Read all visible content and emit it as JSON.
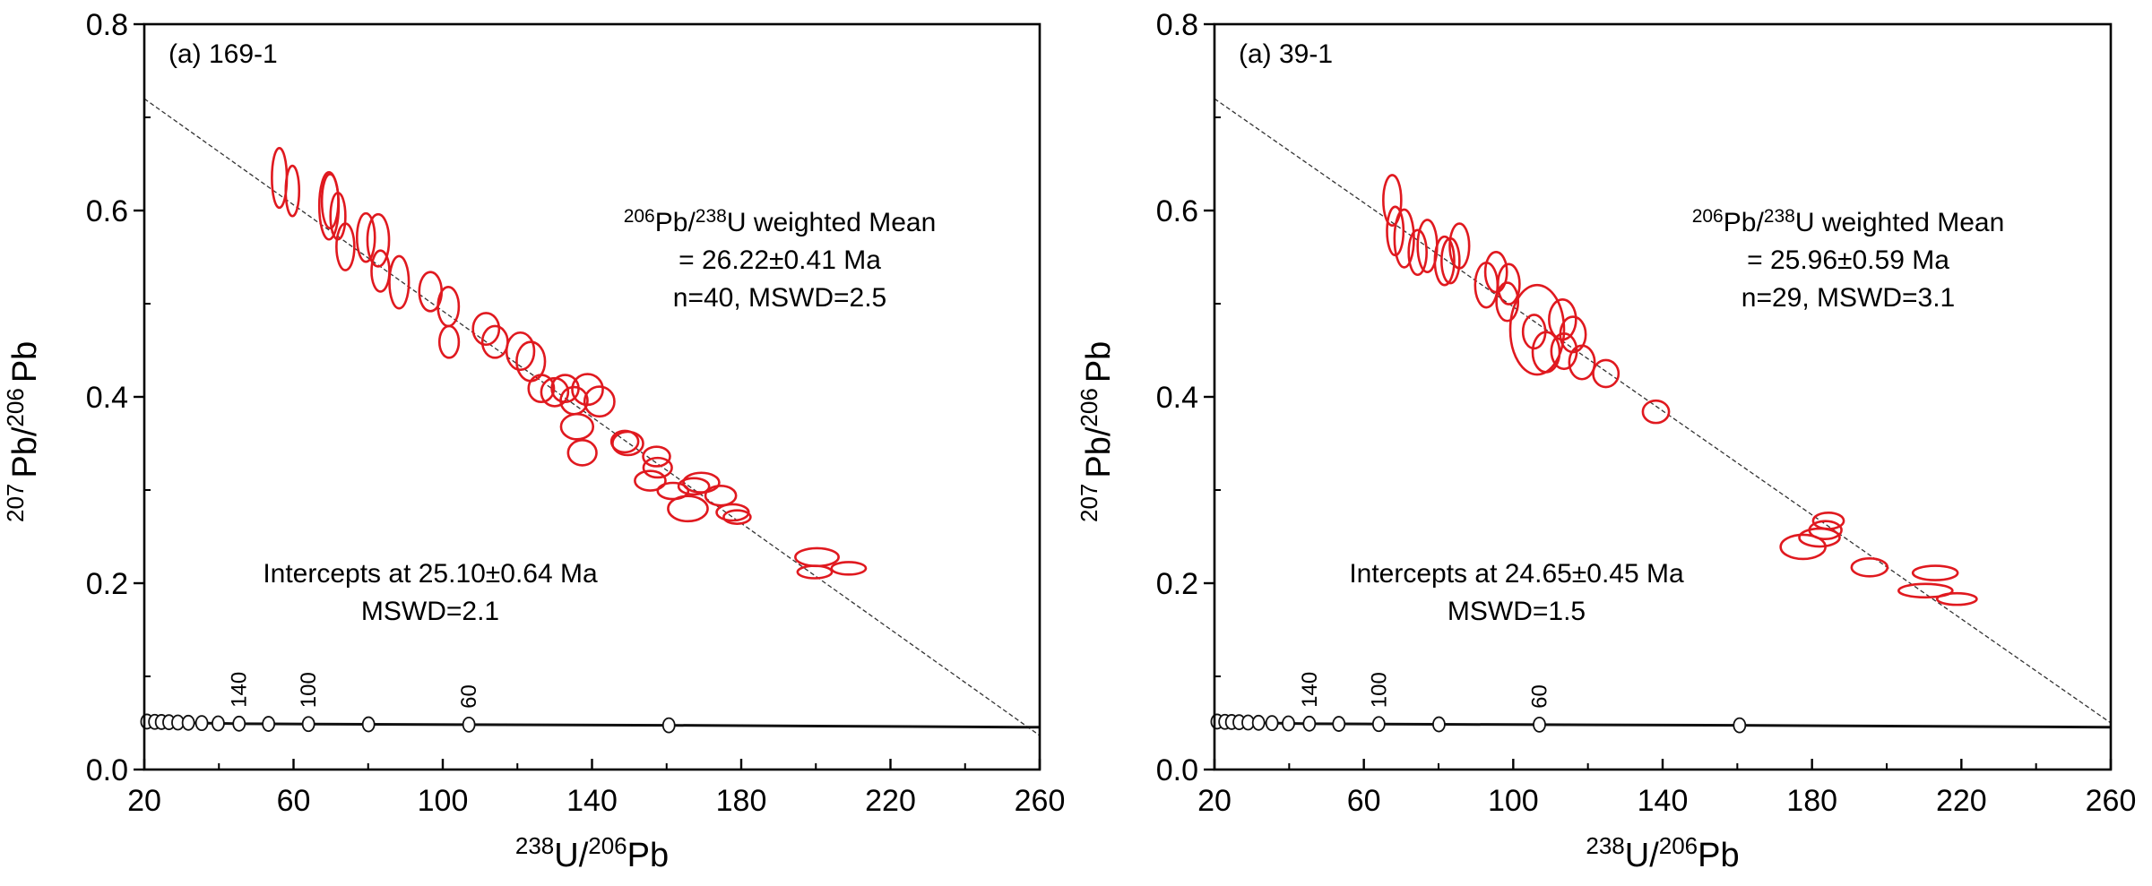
{
  "chart_data": [
    {
      "type": "scatter",
      "subtype": "tera-wasserburg-concordia",
      "panel_label": "(a) 169-1",
      "xlabel": {
        "sup1": "238",
        "base1": "U/",
        "sup2": "206",
        "base2": "Pb"
      },
      "ylabel": {
        "sup1": "207",
        "base1": "Pb/",
        "sup2": "206",
        "base2": "Pb"
      },
      "xlim": [
        20,
        260
      ],
      "ylim": [
        0.0,
        0.8
      ],
      "x_ticks": [
        20,
        60,
        100,
        140,
        180,
        220,
        260
      ],
      "x_tick_labels": [
        "20",
        "60",
        "100",
        "140",
        "180",
        "220",
        "260"
      ],
      "x_minor_ticks": [
        40,
        80,
        120,
        160,
        200,
        240
      ],
      "y_ticks": [
        0.0,
        0.2,
        0.4,
        0.6,
        0.8
      ],
      "y_tick_labels": [
        "0.0",
        "0.2",
        "0.4",
        "0.6",
        "0.8"
      ],
      "y_minor_ticks": [
        0.1,
        0.3,
        0.5,
        0.7
      ],
      "grid": false,
      "annotation_mean": {
        "line1_sup1": "206",
        "line1_a": "Pb/",
        "line1_sup2": "238",
        "line1_b": "U weighted Mean",
        "line2": "= 26.22±0.41 Ma",
        "line3": "n=40, MSWD=2.5"
      },
      "annotation_intercept": {
        "line1": "Intercepts at 25.10±0.64 Ma",
        "line2": "MSWD=2.1"
      },
      "discordia": {
        "x": [
          20,
          260
        ],
        "y": [
          0.72,
          0.0365
        ]
      },
      "concordia": {
        "x": [
          20.7,
          22.8,
          24.6,
          26.6,
          29.0,
          31.8,
          35.4,
          39.8,
          45.4,
          53.3,
          64.0,
          80.1,
          107.0,
          160.6,
          260
        ],
        "y": [
          0.0515,
          0.0512,
          0.051,
          0.0508,
          0.0505,
          0.0502,
          0.0499,
          0.0495,
          0.0492,
          0.049,
          0.0488,
          0.0485,
          0.0482,
          0.0475,
          0.0454
        ],
        "markers": [
          20.7,
          22.8,
          24.6,
          26.6,
          29.0,
          31.8,
          35.4,
          39.8,
          45.4,
          53.3,
          64.0,
          80.1,
          107.0,
          160.6
        ],
        "age_labels": [
          {
            "x": 45.4,
            "text": "140"
          },
          {
            "x": 64.0,
            "text": "100"
          },
          {
            "x": 107.0,
            "text": "60"
          }
        ]
      },
      "ellipse_color": "#e0191f",
      "ellipses": [
        {
          "x": 56.2,
          "y": 0.635,
          "sx": 2.0,
          "sy": 0.032
        },
        {
          "x": 59.7,
          "y": 0.621,
          "sx": 1.8,
          "sy": 0.027
        },
        {
          "x": 69.5,
          "y": 0.605,
          "sx": 2.6,
          "sy": 0.036
        },
        {
          "x": 69.8,
          "y": 0.61,
          "sx": 2.2,
          "sy": 0.029
        },
        {
          "x": 71.9,
          "y": 0.594,
          "sx": 2.0,
          "sy": 0.025
        },
        {
          "x": 73.9,
          "y": 0.561,
          "sx": 2.4,
          "sy": 0.025
        },
        {
          "x": 79.4,
          "y": 0.571,
          "sx": 2.4,
          "sy": 0.026
        },
        {
          "x": 82.7,
          "y": 0.568,
          "sx": 2.9,
          "sy": 0.028
        },
        {
          "x": 83.3,
          "y": 0.535,
          "sx": 2.4,
          "sy": 0.022
        },
        {
          "x": 88.3,
          "y": 0.523,
          "sx": 2.6,
          "sy": 0.028
        },
        {
          "x": 96.7,
          "y": 0.513,
          "sx": 3.0,
          "sy": 0.021
        },
        {
          "x": 101.5,
          "y": 0.497,
          "sx": 2.8,
          "sy": 0.021
        },
        {
          "x": 101.7,
          "y": 0.459,
          "sx": 2.6,
          "sy": 0.017
        },
        {
          "x": 111.6,
          "y": 0.473,
          "sx": 3.5,
          "sy": 0.017
        },
        {
          "x": 114.0,
          "y": 0.459,
          "sx": 3.4,
          "sy": 0.017
        },
        {
          "x": 120.8,
          "y": 0.449,
          "sx": 3.7,
          "sy": 0.02
        },
        {
          "x": 123.6,
          "y": 0.438,
          "sx": 3.8,
          "sy": 0.021
        },
        {
          "x": 126.4,
          "y": 0.409,
          "sx": 3.4,
          "sy": 0.0145
        },
        {
          "x": 130.0,
          "y": 0.405,
          "sx": 3.6,
          "sy": 0.015
        },
        {
          "x": 132.8,
          "y": 0.409,
          "sx": 3.6,
          "sy": 0.0145
        },
        {
          "x": 135.2,
          "y": 0.396,
          "sx": 3.6,
          "sy": 0.0145
        },
        {
          "x": 138.8,
          "y": 0.408,
          "sx": 4.1,
          "sy": 0.0165
        },
        {
          "x": 142.0,
          "y": 0.395,
          "sx": 4.0,
          "sy": 0.016
        },
        {
          "x": 136.0,
          "y": 0.368,
          "sx": 4.3,
          "sy": 0.0135
        },
        {
          "x": 137.4,
          "y": 0.34,
          "sx": 3.8,
          "sy": 0.0135
        },
        {
          "x": 148.8,
          "y": 0.352,
          "sx": 3.6,
          "sy": 0.0115
        },
        {
          "x": 149.6,
          "y": 0.35,
          "sx": 4.1,
          "sy": 0.0125
        },
        {
          "x": 157.3,
          "y": 0.336,
          "sx": 3.6,
          "sy": 0.0105
        },
        {
          "x": 157.6,
          "y": 0.324,
          "sx": 3.8,
          "sy": 0.0105
        },
        {
          "x": 155.6,
          "y": 0.31,
          "sx": 4.1,
          "sy": 0.0105
        },
        {
          "x": 161.7,
          "y": 0.299,
          "sx": 4.1,
          "sy": 0.0087
        },
        {
          "x": 165.7,
          "y": 0.28,
          "sx": 5.3,
          "sy": 0.0135
        },
        {
          "x": 167.3,
          "y": 0.304,
          "sx": 4.1,
          "sy": 0.0087
        },
        {
          "x": 169.3,
          "y": 0.308,
          "sx": 4.8,
          "sy": 0.0105
        },
        {
          "x": 174.5,
          "y": 0.294,
          "sx": 4.1,
          "sy": 0.0105
        },
        {
          "x": 177.7,
          "y": 0.276,
          "sx": 4.3,
          "sy": 0.0087
        },
        {
          "x": 178.9,
          "y": 0.271,
          "sx": 3.6,
          "sy": 0.0072
        },
        {
          "x": 200.3,
          "y": 0.228,
          "sx": 5.8,
          "sy": 0.0096
        },
        {
          "x": 199.7,
          "y": 0.212,
          "sx": 4.6,
          "sy": 0.0067
        },
        {
          "x": 208.8,
          "y": 0.216,
          "sx": 4.6,
          "sy": 0.0067
        }
      ]
    },
    {
      "type": "scatter",
      "subtype": "tera-wasserburg-concordia",
      "panel_label": "(a) 39-1",
      "xlabel": {
        "sup1": "238",
        "base1": "U/",
        "sup2": "206",
        "base2": "Pb"
      },
      "ylabel": {
        "sup1": "207",
        "base1": "Pb/",
        "sup2": "206",
        "base2": "Pb"
      },
      "xlim": [
        20,
        260
      ],
      "ylim": [
        0.0,
        0.8
      ],
      "x_ticks": [
        20,
        60,
        100,
        140,
        180,
        220,
        260
      ],
      "x_tick_labels": [
        "20",
        "60",
        "100",
        "140",
        "180",
        "220",
        "260"
      ],
      "x_minor_ticks": [
        40,
        80,
        120,
        160,
        200,
        240
      ],
      "y_ticks": [
        0.0,
        0.2,
        0.4,
        0.6,
        0.8
      ],
      "y_tick_labels": [
        "0.0",
        "0.2",
        "0.4",
        "0.6",
        "0.8"
      ],
      "y_minor_ticks": [
        0.1,
        0.3,
        0.5,
        0.7
      ],
      "grid": false,
      "annotation_mean": {
        "line1_sup1": "206",
        "line1_a": "Pb/",
        "line1_sup2": "238",
        "line1_b": "U weighted Mean",
        "line2": "= 25.96±0.59 Ma",
        "line3": "n=29, MSWD=3.1"
      },
      "annotation_intercept": {
        "line1": "Intercepts at 24.65±0.45 Ma",
        "line2": "MSWD=1.5"
      },
      "discordia": {
        "x": [
          20,
          260
        ],
        "y": [
          0.72,
          0.05
        ]
      },
      "concordia": {
        "x": [
          20.7,
          22.8,
          24.6,
          26.6,
          29.0,
          31.8,
          35.4,
          39.8,
          45.4,
          53.3,
          64.0,
          80.1,
          107.0,
          160.6,
          260
        ],
        "y": [
          0.0515,
          0.0512,
          0.051,
          0.0508,
          0.0505,
          0.0502,
          0.0499,
          0.0495,
          0.0492,
          0.049,
          0.0488,
          0.0485,
          0.0482,
          0.0475,
          0.0454
        ],
        "markers": [
          20.7,
          22.8,
          24.6,
          26.6,
          29.0,
          31.8,
          35.4,
          39.8,
          45.4,
          53.3,
          64.0,
          80.1,
          107.0,
          160.6
        ],
        "age_labels": [
          {
            "x": 45.4,
            "text": "140"
          },
          {
            "x": 64.0,
            "text": "100"
          },
          {
            "x": 107.0,
            "text": "60"
          }
        ]
      },
      "ellipse_color": "#e0191f",
      "ellipses": [
        {
          "x": 67.6,
          "y": 0.611,
          "sx": 2.4,
          "sy": 0.027
        },
        {
          "x": 68.4,
          "y": 0.578,
          "sx": 2.2,
          "sy": 0.026
        },
        {
          "x": 70.8,
          "y": 0.57,
          "sx": 2.6,
          "sy": 0.031
        },
        {
          "x": 74.4,
          "y": 0.555,
          "sx": 2.4,
          "sy": 0.024
        },
        {
          "x": 77.0,
          "y": 0.562,
          "sx": 2.6,
          "sy": 0.028
        },
        {
          "x": 81.6,
          "y": 0.546,
          "sx": 2.6,
          "sy": 0.026
        },
        {
          "x": 83.2,
          "y": 0.546,
          "sx": 2.4,
          "sy": 0.024
        },
        {
          "x": 85.6,
          "y": 0.562,
          "sx": 2.6,
          "sy": 0.024
        },
        {
          "x": 92.8,
          "y": 0.52,
          "sx": 3.0,
          "sy": 0.024
        },
        {
          "x": 95.4,
          "y": 0.534,
          "sx": 2.9,
          "sy": 0.0215
        },
        {
          "x": 98.8,
          "y": 0.521,
          "sx": 2.9,
          "sy": 0.0215
        },
        {
          "x": 98.4,
          "y": 0.502,
          "sx": 2.9,
          "sy": 0.0205
        },
        {
          "x": 106.4,
          "y": 0.472,
          "sx": 7.2,
          "sy": 0.048
        },
        {
          "x": 105.6,
          "y": 0.47,
          "sx": 3.0,
          "sy": 0.018
        },
        {
          "x": 108.8,
          "y": 0.448,
          "sx": 3.6,
          "sy": 0.0215
        },
        {
          "x": 113.2,
          "y": 0.483,
          "sx": 3.6,
          "sy": 0.0215
        },
        {
          "x": 116.0,
          "y": 0.467,
          "sx": 3.4,
          "sy": 0.019
        },
        {
          "x": 113.6,
          "y": 0.449,
          "sx": 3.4,
          "sy": 0.019
        },
        {
          "x": 118.4,
          "y": 0.437,
          "sx": 3.4,
          "sy": 0.018
        },
        {
          "x": 124.8,
          "y": 0.425,
          "sx": 3.4,
          "sy": 0.0145
        },
        {
          "x": 138.2,
          "y": 0.384,
          "sx": 3.5,
          "sy": 0.012
        },
        {
          "x": 177.6,
          "y": 0.239,
          "sx": 6.0,
          "sy": 0.013
        },
        {
          "x": 182.0,
          "y": 0.249,
          "sx": 5.4,
          "sy": 0.0096
        },
        {
          "x": 183.6,
          "y": 0.257,
          "sx": 4.3,
          "sy": 0.0096
        },
        {
          "x": 184.4,
          "y": 0.267,
          "sx": 4.1,
          "sy": 0.0087
        },
        {
          "x": 195.4,
          "y": 0.217,
          "sx": 4.8,
          "sy": 0.0096
        },
        {
          "x": 213.0,
          "y": 0.211,
          "sx": 6.0,
          "sy": 0.0077
        },
        {
          "x": 210.4,
          "y": 0.192,
          "sx": 7.2,
          "sy": 0.0072
        },
        {
          "x": 218.8,
          "y": 0.183,
          "sx": 5.3,
          "sy": 0.0062
        }
      ]
    }
  ]
}
